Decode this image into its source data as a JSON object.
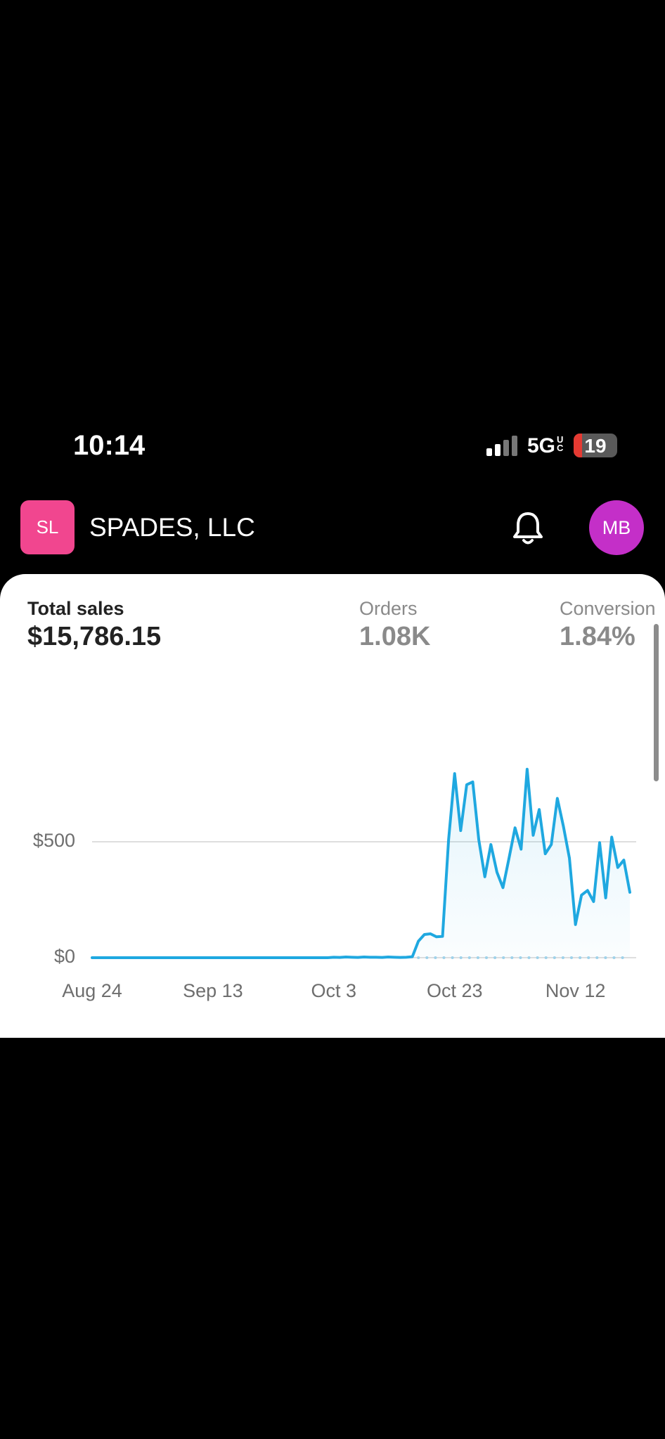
{
  "status": {
    "time": "10:14",
    "network": "5G",
    "network_sub": "UC",
    "battery": "19"
  },
  "header": {
    "initials": "SL",
    "store": "SPADES, LLC",
    "avatar": "MB"
  },
  "metrics": [
    {
      "label": "Total sales",
      "value": "$15,786.15"
    },
    {
      "label": "Orders",
      "value": "1.08K"
    },
    {
      "label": "Conversion",
      "value": "1.84%"
    }
  ],
  "chart_data": {
    "type": "line",
    "categories": [
      "Aug 24",
      null,
      null,
      null,
      null,
      null,
      null,
      null,
      null,
      null,
      null,
      null,
      null,
      null,
      null,
      null,
      null,
      null,
      null,
      null,
      "Sep 13",
      null,
      null,
      null,
      null,
      null,
      null,
      null,
      null,
      null,
      null,
      null,
      null,
      null,
      null,
      null,
      null,
      null,
      null,
      null,
      "Oct 3",
      null,
      null,
      null,
      null,
      null,
      null,
      null,
      null,
      null,
      null,
      null,
      null,
      null,
      null,
      null,
      null,
      null,
      null,
      null,
      "Oct 23",
      null,
      null,
      null,
      null,
      null,
      null,
      null,
      null,
      null,
      null,
      null,
      null,
      null,
      null,
      null,
      null,
      null,
      null,
      null,
      "Nov 12",
      null,
      null,
      null,
      null,
      null,
      null,
      null,
      null,
      null
    ],
    "series": [
      {
        "color": "#1fa8e0",
        "style": "solid",
        "fill": true,
        "values": [
          0,
          0,
          0,
          0,
          0,
          0,
          0,
          0,
          0,
          0,
          0,
          0,
          0,
          0,
          0,
          0,
          0,
          0,
          0,
          0,
          0,
          0,
          0,
          0,
          0,
          0,
          0,
          0,
          0,
          0,
          0,
          0,
          0,
          0,
          0,
          0,
          0,
          0,
          0,
          0,
          2,
          1,
          3,
          2,
          1,
          3,
          2,
          2,
          1,
          3,
          2,
          1,
          2,
          4,
          71,
          100,
          103,
          90,
          92,
          508,
          794,
          548,
          746,
          758,
          508,
          349,
          488,
          369,
          302,
          429,
          560,
          468,
          813,
          528,
          639,
          448,
          488,
          687,
          567,
          429,
          143,
          270,
          290,
          242,
          496,
          258,
          520,
          389,
          421,
          282
        ]
      },
      {
        "color": "#9fd2ea",
        "style": "dotted",
        "fill": false,
        "values": [
          null,
          null,
          null,
          null,
          null,
          null,
          null,
          null,
          null,
          null,
          null,
          null,
          null,
          null,
          null,
          null,
          null,
          null,
          null,
          null,
          null,
          null,
          null,
          null,
          null,
          null,
          null,
          null,
          null,
          null,
          null,
          null,
          null,
          null,
          null,
          null,
          null,
          null,
          null,
          null,
          null,
          null,
          null,
          null,
          null,
          null,
          null,
          null,
          null,
          null,
          null,
          null,
          null,
          null,
          0,
          0,
          0,
          0,
          0,
          0,
          0,
          0,
          0,
          0,
          0,
          0,
          0,
          0,
          0,
          0,
          0,
          0,
          0,
          0,
          0,
          0,
          0,
          0,
          0,
          0,
          0,
          0,
          0,
          0,
          0,
          0,
          0,
          0,
          0,
          0
        ]
      }
    ],
    "ylim": [
      0,
      1200
    ],
    "yticks": [
      {
        "value": 0,
        "label": "$0"
      },
      {
        "value": 500,
        "label": "$500"
      }
    ],
    "grid": true
  }
}
